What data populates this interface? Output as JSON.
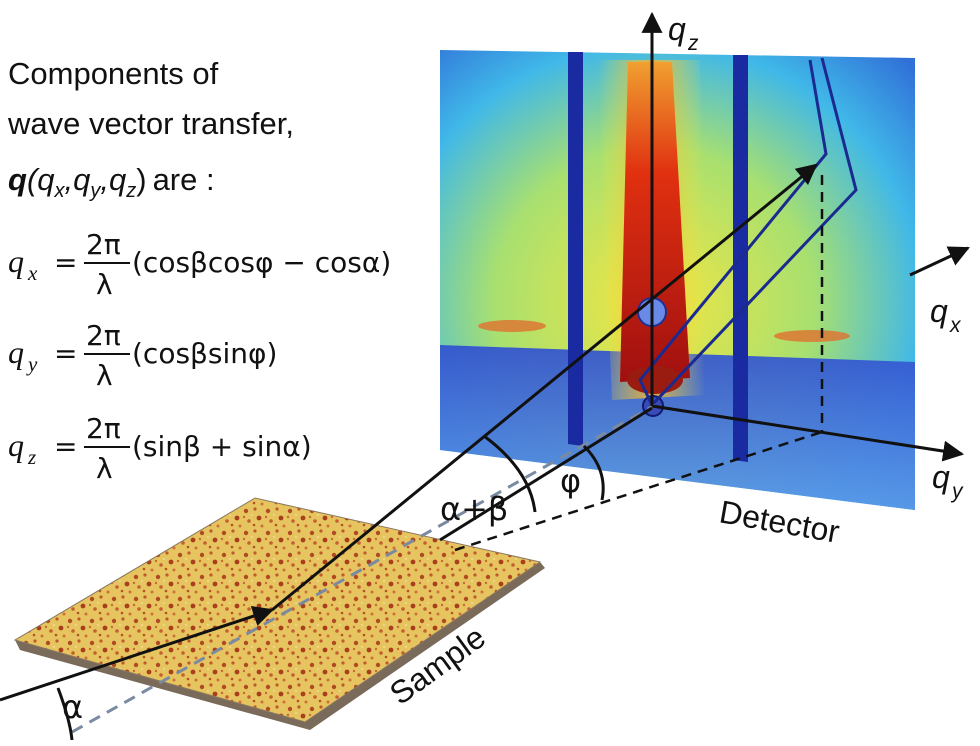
{
  "intro": {
    "line1": "Components of",
    "line2": "wave vector transfer,",
    "line3_vec": "q",
    "line3_args": "(q",
    "line3_sub_x": "x",
    "line3_comma1": ",q",
    "line3_sub_y": "y",
    "line3_comma2": ",q",
    "line3_sub_z": "z",
    "line3_close": ")",
    "line3_tail": "are :"
  },
  "equations": {
    "qx": {
      "lhs": "q",
      "sub": "x",
      "eq": "=",
      "num": "2π",
      "den": "λ",
      "rhs": "(cosβcosφ − cosα)"
    },
    "qy": {
      "lhs": "q",
      "sub": "y",
      "eq": "=",
      "num": "2π",
      "den": "λ",
      "rhs": "(cosβsinφ)"
    },
    "qz": {
      "lhs": "q",
      "sub": "z",
      "eq": "=",
      "num": "2π",
      "den": "λ",
      "rhs": "(sinβ + sinα)"
    }
  },
  "axes": {
    "qz": {
      "main": "q",
      "sub": "z"
    },
    "qx": {
      "main": "q",
      "sub": "x"
    },
    "qy": {
      "main": "q",
      "sub": "y"
    }
  },
  "angles": {
    "alpha": "α",
    "alpha_plus_beta": "α+β",
    "phi": "φ"
  },
  "labels": {
    "detector": "Detector",
    "sample": "Sample"
  },
  "colors": {
    "detector_bg": "#f0e040",
    "detector_low": "#2040c0",
    "detector_streak": "#d02010",
    "sample_base": "#e8c050",
    "sample_spots": "#a04020",
    "lines": "#111111",
    "beamstop": "#1a2aa0",
    "dashed_ref": "#7a8aa0"
  }
}
